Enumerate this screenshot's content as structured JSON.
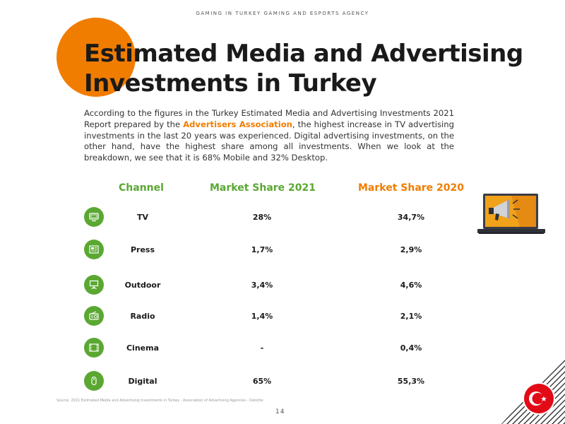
{
  "header": {
    "text": "GAMING IN TURKEY   GAMING AND ESPORTS AGENCY"
  },
  "title": {
    "line1": "Estimated Media and Advertising",
    "line2": "Investments in Turkey"
  },
  "intro": {
    "part1": "According to the figures in the Turkey Estimated Media and Advertising Investments 2021 Report prepared by the ",
    "highlight": "Advertisers Association",
    "part2": ", the highest increase in TV advertising investments in the last 20 years was experienced. Digital advertising investments, on the other hand, have the highest share among all investments. When we look at the breakdown, we see that it is 68% Mobile and 32% Desktop."
  },
  "table": {
    "headers": {
      "channel": "Channel",
      "share2021": "Market Share 2021",
      "share2020": "Market Share 2020"
    },
    "rows": [
      {
        "icon": "tv-icon",
        "channel": "TV",
        "share2021": "28%",
        "share2020": "34,7%"
      },
      {
        "icon": "newspaper-icon",
        "channel": "Press",
        "share2021": "1,7%",
        "share2020": "2,9%"
      },
      {
        "icon": "billboard-icon",
        "channel": "Outdoor",
        "share2021": "3,4%",
        "share2020": "4,6%"
      },
      {
        "icon": "radio-icon",
        "channel": "Radio",
        "share2021": "1,4%",
        "share2020": "2,1%"
      },
      {
        "icon": "film-icon",
        "channel": "Cinema",
        "share2021": "-",
        "share2020": "0,4%"
      },
      {
        "icon": "mouse-icon",
        "channel": "Digital",
        "share2021": "65%",
        "share2020": "55,3%"
      }
    ]
  },
  "source": "Source: 2021 Estimated Media and Advertising Investments in Turkey - Association of Advertising Agencies - Deloitte",
  "page_number": "14",
  "colors": {
    "orange": "#f07d00",
    "green": "#5aa832",
    "flag_red": "#e30a17"
  }
}
